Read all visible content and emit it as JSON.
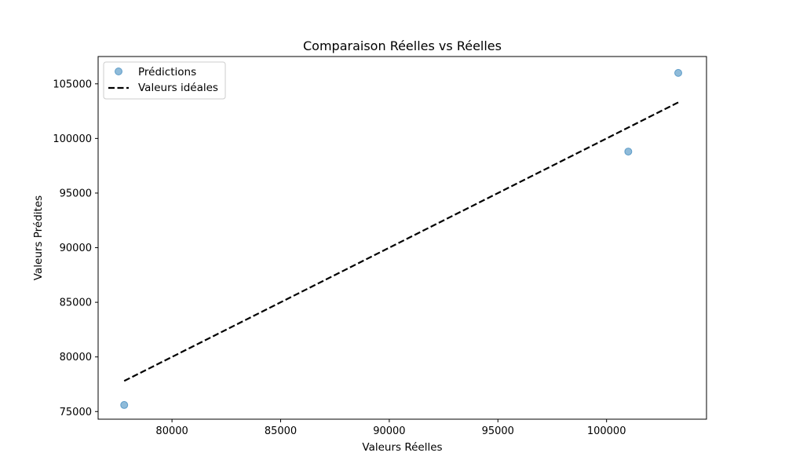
{
  "chart_data": {
    "type": "scatter",
    "title": "Comparaison Réelles vs Réelles",
    "xlabel": "Valeurs Réelles",
    "ylabel": "Valeurs Prédites",
    "xlim": [
      76600,
      104600
    ],
    "ylim": [
      74300,
      107500
    ],
    "xticks": [
      80000,
      85000,
      90000,
      95000,
      100000
    ],
    "yticks": [
      75000,
      80000,
      85000,
      90000,
      95000,
      100000,
      105000
    ],
    "xtick_labels": [
      "80000",
      "85000",
      "90000",
      "95000",
      "100000"
    ],
    "ytick_labels": [
      "75000",
      "80000",
      "85000",
      "90000",
      "95000",
      "100000",
      "105000"
    ],
    "grid": false,
    "legend_position": "top-left",
    "series": [
      {
        "name": "Prédictions",
        "kind": "scatter",
        "color": "#1f77b4",
        "opacity": 0.5,
        "points": [
          {
            "x": 77800,
            "y": 75600
          },
          {
            "x": 101000,
            "y": 98800
          },
          {
            "x": 103300,
            "y": 106000
          }
        ]
      },
      {
        "name": "Valeurs idéales",
        "kind": "line",
        "style": "dashed",
        "color": "#000000",
        "points": [
          {
            "x": 77800,
            "y": 77800
          },
          {
            "x": 103300,
            "y": 103300
          }
        ]
      }
    ]
  }
}
